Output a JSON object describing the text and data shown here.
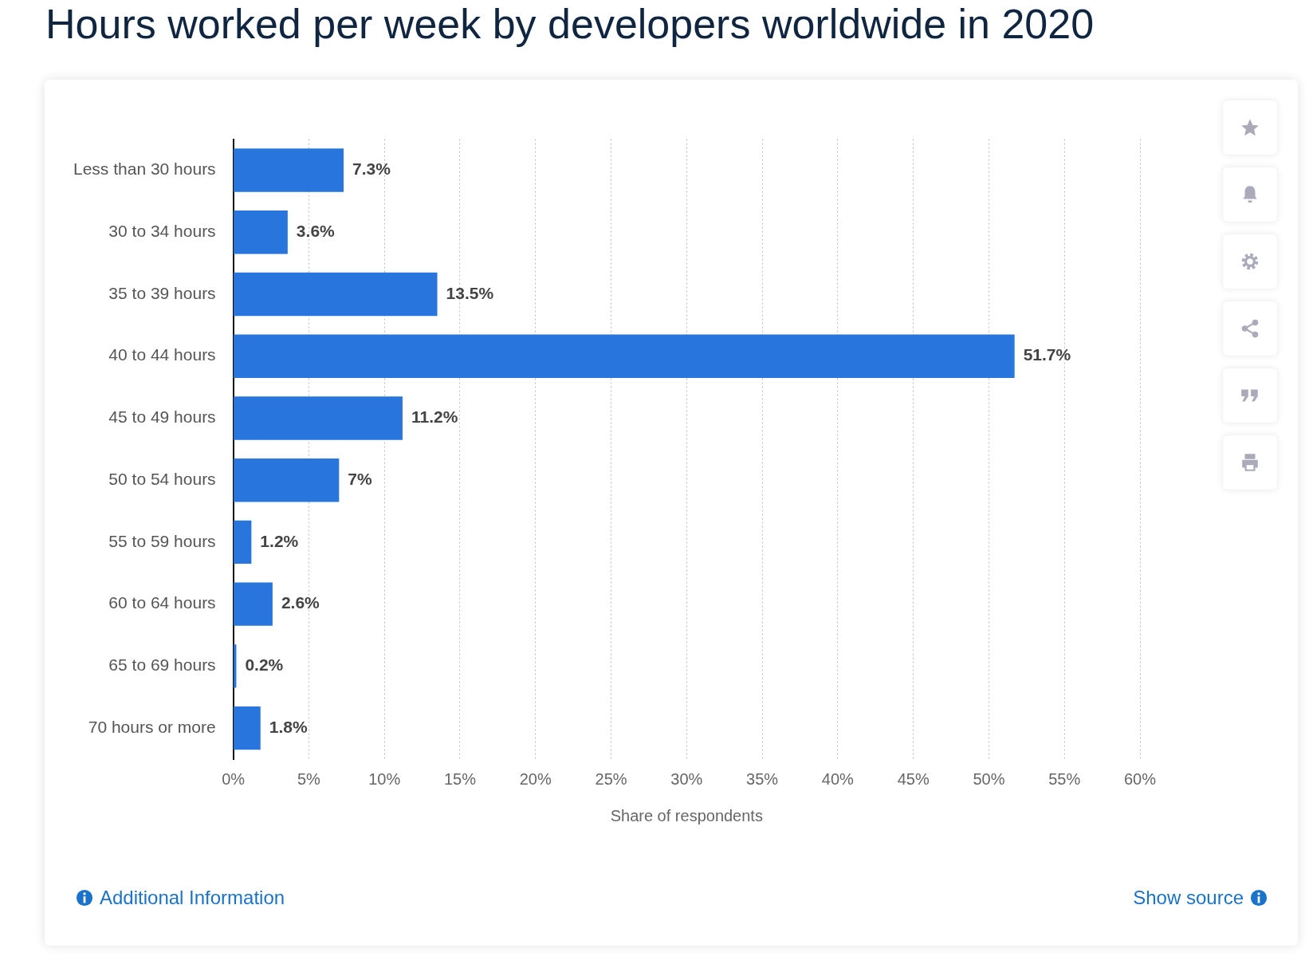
{
  "chart_data": {
    "type": "bar",
    "orientation": "horizontal",
    "title": "Hours worked per week by developers worldwide in 2020",
    "categories": [
      "Less than 30 hours",
      "30 to 34 hours",
      "35 to 39 hours",
      "40 to 44 hours",
      "45 to 49 hours",
      "50 to 54 hours",
      "55 to 59 hours",
      "60 to 64 hours",
      "65 to 69 hours",
      "70 hours or more"
    ],
    "values": [
      7.3,
      3.6,
      13.5,
      51.7,
      11.2,
      7,
      1.2,
      2.6,
      0.2,
      1.8
    ],
    "value_labels": [
      "7.3%",
      "3.6%",
      "13.5%",
      "51.7%",
      "11.2%",
      "7%",
      "1.2%",
      "2.6%",
      "0.2%",
      "1.8%"
    ],
    "color": "#2876dd",
    "xlabel": "Share of respondents",
    "xlim": [
      0,
      60
    ],
    "xticks": [
      {
        "value": 0,
        "label": "0%"
      },
      {
        "value": 5,
        "label": "5%"
      },
      {
        "value": 10,
        "label": "10%"
      },
      {
        "value": 15,
        "label": "15%"
      },
      {
        "value": 20,
        "label": "20%"
      },
      {
        "value": 25,
        "label": "25%"
      },
      {
        "value": 30,
        "label": "30%"
      },
      {
        "value": 35,
        "label": "35%"
      },
      {
        "value": 40,
        "label": "40%"
      },
      {
        "value": 45,
        "label": "45%"
      },
      {
        "value": 50,
        "label": "50%"
      },
      {
        "value": 55,
        "label": "55%"
      },
      {
        "value": 60,
        "label": "60%"
      }
    ],
    "grid": "x",
    "legend": false,
    "annotations": [
      "Additional Information",
      "Show source"
    ]
  }
}
